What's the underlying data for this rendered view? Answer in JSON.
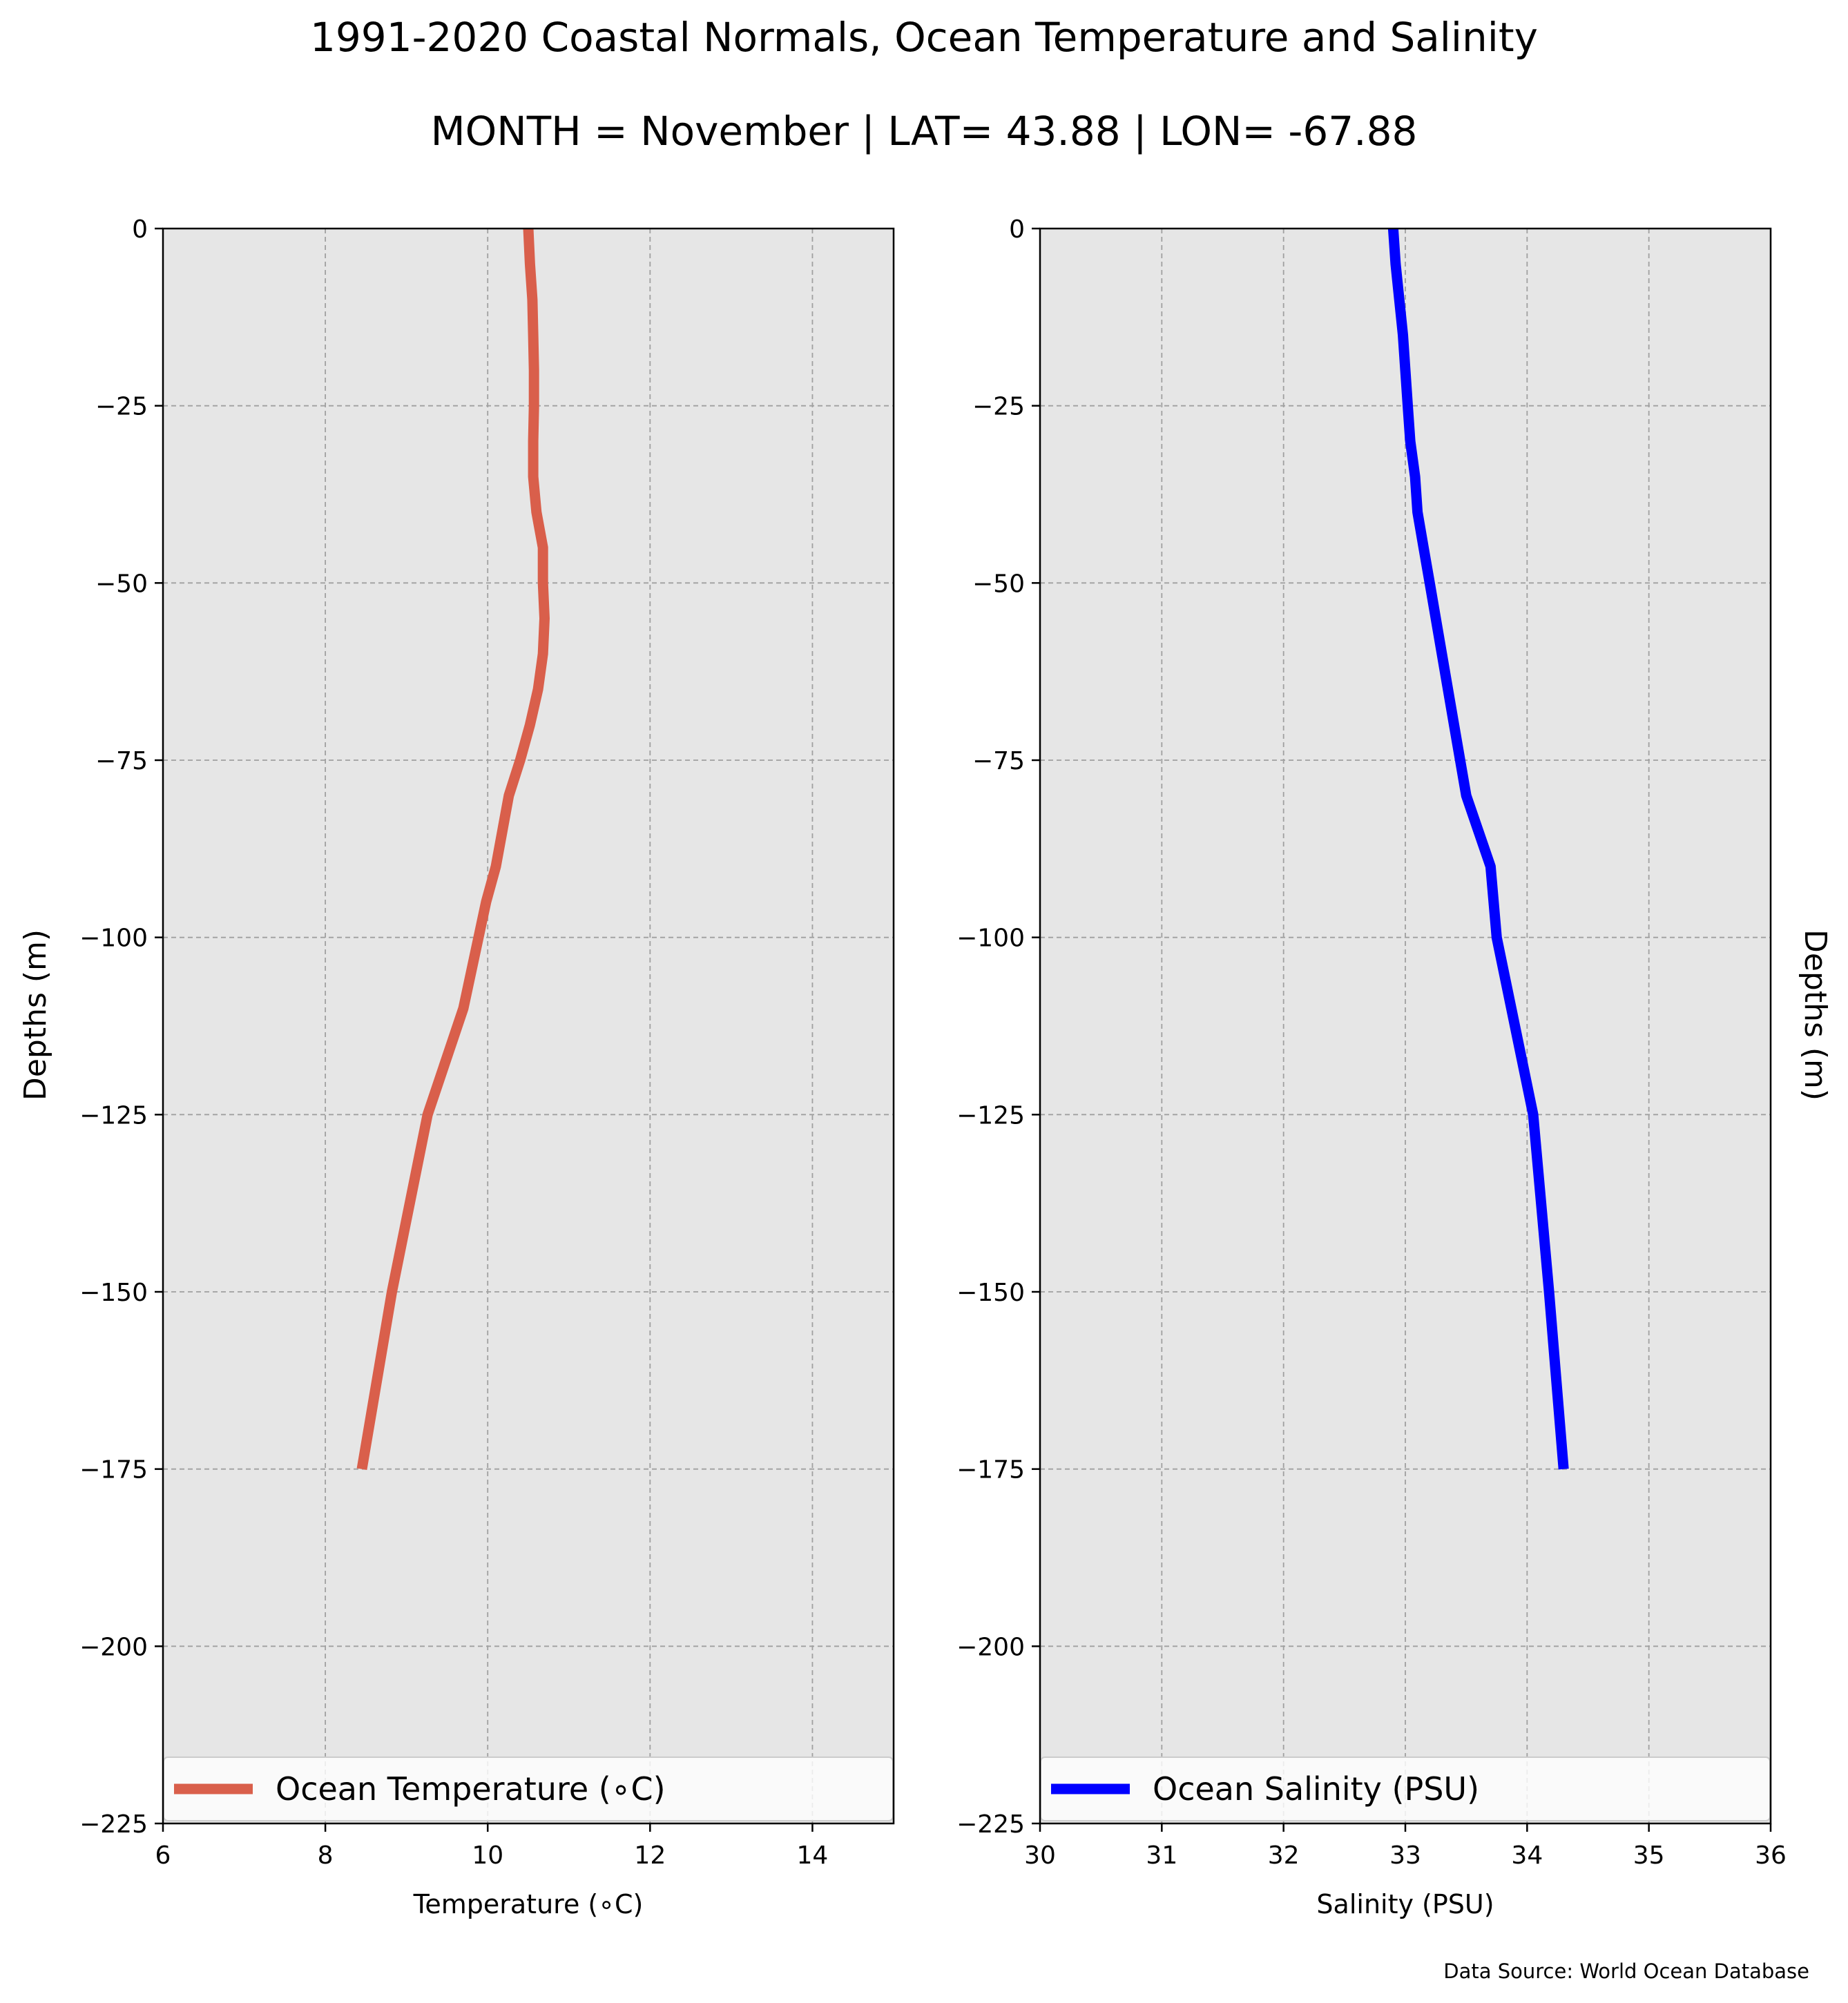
{
  "title": "1991-2020 Coastal Normals, Ocean Temperature and Salinity",
  "subtitle": "MONTH = November | LAT= 43.88 | LON= -67.88",
  "source": "Data Source: World Ocean Database",
  "colors": {
    "temperature": "#d95f4b",
    "salinity": "#0000ff",
    "panel_bg": "#e6e6e6",
    "grid": "#a0a0a0"
  },
  "chart_data": [
    {
      "type": "line",
      "xlabel": "Temperature ($^\\circ$C)",
      "xlabel_display": "Temperature (∘C)",
      "ylabel": "Depths (m)",
      "xlim": [
        6,
        15
      ],
      "ylim": [
        -225,
        0
      ],
      "xticks": [
        "6",
        "8",
        "10",
        "12",
        "14"
      ],
      "xtick_values": [
        6,
        8,
        10,
        12,
        14
      ],
      "yticks": [
        "0",
        "−25",
        "−50",
        "−75",
        "−100",
        "−125",
        "−150",
        "−175",
        "−200",
        "−225"
      ],
      "ytick_values": [
        0,
        -25,
        -50,
        -75,
        -100,
        -125,
        -150,
        -175,
        -200,
        -225
      ],
      "grid": true,
      "legend": {
        "label": "Ocean Temperature (∘C)",
        "location": "lower"
      },
      "series": [
        {
          "name": "Ocean Temperature (∘C)",
          "x": [
            10.5,
            10.52,
            10.55,
            10.56,
            10.57,
            10.57,
            10.56,
            10.56,
            10.6,
            10.68,
            10.68,
            10.7,
            10.68,
            10.62,
            10.52,
            10.4,
            10.26,
            10.1,
            9.98,
            9.7,
            9.26,
            8.82,
            8.45
          ],
          "y": [
            0,
            -5,
            -10,
            -15,
            -20,
            -25,
            -30,
            -35,
            -40,
            -45,
            -50,
            -55,
            -60,
            -65,
            -70,
            -75,
            -80,
            -90,
            -95,
            -110,
            -125,
            -150,
            -175
          ]
        }
      ]
    },
    {
      "type": "line",
      "xlabel": "Salinity (PSU)",
      "ylabel": "Depths (m)",
      "xlim": [
        30,
        36
      ],
      "ylim": [
        -225,
        0
      ],
      "xticks": [
        "30",
        "31",
        "32",
        "33",
        "34",
        "35",
        "36"
      ],
      "xtick_values": [
        30,
        31,
        32,
        33,
        34,
        35,
        36
      ],
      "yticks": [
        "0",
        "−25",
        "−50",
        "−75",
        "−100",
        "−125",
        "−150",
        "−175",
        "−200",
        "−225"
      ],
      "ytick_values": [
        0,
        -25,
        -50,
        -75,
        -100,
        -125,
        -150,
        -175,
        -200,
        -225
      ],
      "grid": true,
      "legend": {
        "label": "Ocean Salinity (PSU)",
        "location": "lower"
      },
      "series": [
        {
          "name": "Ocean Salinity (PSU)",
          "x": [
            32.9,
            32.92,
            32.95,
            32.98,
            33.0,
            33.02,
            33.04,
            33.08,
            33.1,
            33.15,
            33.2,
            33.3,
            33.4,
            33.5,
            33.6,
            33.7,
            33.75,
            34.05,
            34.18,
            34.3
          ],
          "y": [
            0,
            -5,
            -10,
            -15,
            -20,
            -25,
            -30,
            -35,
            -40,
            -45,
            -50,
            -60,
            -70,
            -80,
            -85,
            -90,
            -100,
            -125,
            -150,
            -175
          ]
        }
      ]
    }
  ]
}
